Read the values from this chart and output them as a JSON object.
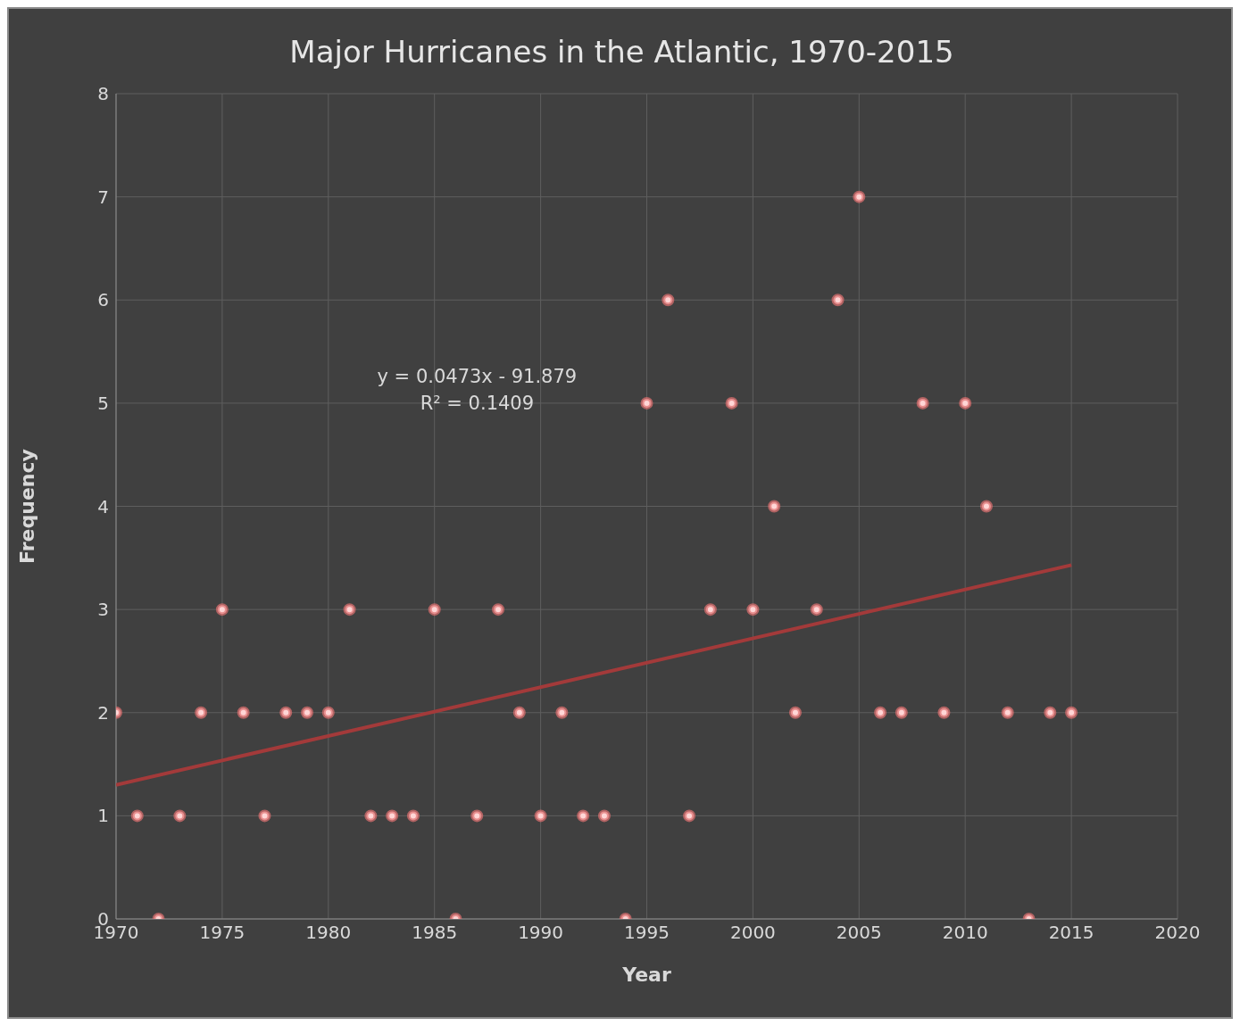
{
  "chart_data": {
    "type": "scatter",
    "title": "Major Hurricanes in the Atlantic, 1970-2015",
    "xlabel": "Year",
    "ylabel": "Frequency",
    "x": [
      1970,
      1971,
      1972,
      1973,
      1974,
      1975,
      1976,
      1977,
      1978,
      1979,
      1980,
      1981,
      1982,
      1983,
      1984,
      1985,
      1986,
      1987,
      1988,
      1989,
      1990,
      1991,
      1992,
      1993,
      1994,
      1995,
      1996,
      1997,
      1998,
      1999,
      2000,
      2001,
      2002,
      2003,
      2004,
      2005,
      2006,
      2007,
      2008,
      2009,
      2010,
      2011,
      2012,
      2013,
      2014,
      2015
    ],
    "series": [
      {
        "color": "#e07070",
        "marker": "circle",
        "values": [
          2,
          1,
          0,
          1,
          2,
          3,
          2,
          1,
          2,
          2,
          2,
          3,
          1,
          1,
          1,
          3,
          0,
          1,
          3,
          2,
          1,
          2,
          1,
          1,
          0,
          5,
          6,
          1,
          3,
          5,
          3,
          4,
          2,
          3,
          6,
          7,
          2,
          2,
          5,
          2,
          5,
          4,
          2,
          0,
          2,
          2
        ]
      },
      {
        "type": "line",
        "marker": "none",
        "color": "#a33a3a",
        "x": [
          1970,
          2015
        ],
        "values": [
          1.3,
          3.43
        ]
      }
    ],
    "annotations": [
      "y = 0.0473x - 91.879",
      "R² = 0.1409"
    ],
    "xlim": [
      1970,
      2020
    ],
    "xticks": [
      1970,
      1975,
      1980,
      1985,
      1990,
      1995,
      2000,
      2005,
      2010,
      2015,
      2020
    ],
    "ylim": [
      0,
      8
    ],
    "yticks": [
      0,
      1,
      2,
      3,
      4,
      5,
      6,
      7,
      8
    ],
    "grid": true
  }
}
